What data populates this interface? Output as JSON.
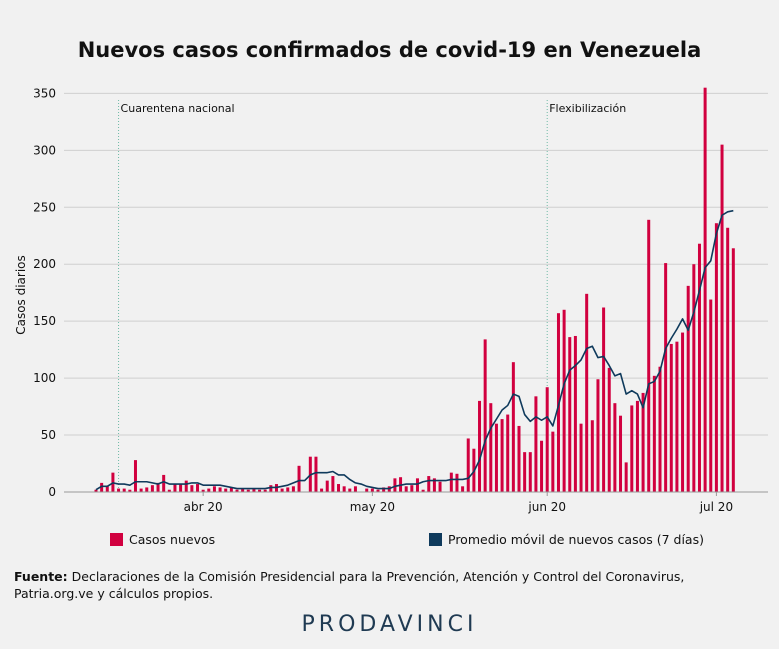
{
  "title": "Nuevos casos confirmados de covid-19 en Venezuela",
  "colors": {
    "bars": "#d1003f",
    "line": "#0f3a5c",
    "grid": "#cfcfcf",
    "background": "#f1f1f1",
    "annotation": "#6fb9a5"
  },
  "legend": {
    "bars_label": "Casos nuevos",
    "line_label": "Promedio móvil de nuevos casos (7 días)"
  },
  "source": {
    "label": "Fuente:",
    "text": "Declaraciones de la Comisión Presidencial para la Prevención, Atención y Control del Coronavirus, Patria.org.ve y cálculos propios."
  },
  "brand": "PRODAVINCI",
  "chart_data": {
    "type": "bar",
    "title": "Nuevos casos confirmados de covid-19 en Venezuela",
    "ylabel": "Casos diarios",
    "xlabel": "",
    "ylim": [
      0,
      360
    ],
    "y_ticks": [
      0,
      50,
      100,
      150,
      200,
      250,
      300,
      350
    ],
    "grid": true,
    "legend_position": "bottom",
    "x_start": "2020-03-13",
    "x_ticks": [
      {
        "date": "2020-04-01",
        "label": "abr 20"
      },
      {
        "date": "2020-05-01",
        "label": "may 20"
      },
      {
        "date": "2020-06-01",
        "label": "jun 20"
      },
      {
        "date": "2020-07-01",
        "label": "jul 20"
      }
    ],
    "annotations": [
      {
        "date": "2020-03-17",
        "label": "Cuarentena nacional"
      },
      {
        "date": "2020-06-01",
        "label": "Flexibilización"
      }
    ],
    "series": [
      {
        "name": "Casos nuevos",
        "type": "bar",
        "values": [
          2,
          8,
          5,
          17,
          3,
          3,
          2,
          28,
          3,
          4,
          6,
          8,
          15,
          2,
          7,
          7,
          10,
          6,
          7,
          2,
          3,
          5,
          4,
          3,
          4,
          2,
          3,
          2,
          3,
          2,
          2,
          6,
          7,
          3,
          4,
          5,
          23,
          0,
          31,
          31,
          3,
          10,
          14,
          7,
          5,
          3,
          5,
          0,
          3,
          3,
          2,
          4,
          5,
          12,
          13,
          5,
          6,
          12,
          2,
          14,
          12,
          9,
          0,
          17,
          16,
          5,
          47,
          38,
          80,
          134,
          78,
          60,
          64,
          68,
          114,
          58,
          35,
          35,
          84,
          45,
          92,
          53,
          157,
          160,
          136,
          137,
          60,
          174,
          63,
          99,
          162,
          109,
          78,
          67,
          26,
          76,
          80,
          87,
          239,
          102,
          110,
          201,
          130,
          132,
          140,
          181,
          200,
          218,
          355,
          169,
          236,
          305,
          232,
          214
        ],
        "color": "#d1003f"
      },
      {
        "name": "Promedio móvil de nuevos casos (7 días)",
        "type": "line",
        "values": [
          2,
          5,
          5,
          8,
          7,
          7,
          6,
          9,
          9,
          9,
          8,
          7,
          9,
          7,
          7,
          7,
          7,
          8,
          8,
          6,
          6,
          6,
          6,
          5,
          4,
          3,
          3,
          3,
          3,
          3,
          3,
          4,
          4,
          5,
          6,
          8,
          10,
          10,
          15,
          17,
          17,
          17,
          18,
          15,
          15,
          11,
          8,
          7,
          5,
          4,
          3,
          3,
          3,
          5,
          6,
          7,
          7,
          7,
          9,
          10,
          10,
          10,
          10,
          11,
          11,
          11,
          12,
          18,
          28,
          45,
          56,
          64,
          72,
          76,
          86,
          84,
          68,
          62,
          66,
          63,
          66,
          58,
          76,
          95,
          107,
          111,
          116,
          126,
          128,
          118,
          119,
          111,
          102,
          104,
          86,
          89,
          86,
          74,
          95,
          97,
          106,
          126,
          135,
          143,
          152,
          142,
          158,
          177,
          197,
          203,
          227,
          243,
          246,
          247
        ],
        "color": "#0f3a5c"
      }
    ]
  }
}
